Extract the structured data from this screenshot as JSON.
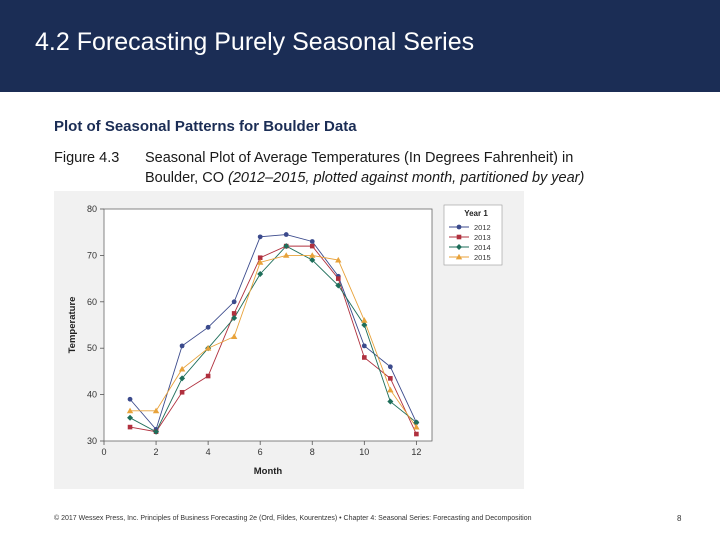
{
  "slide": {
    "title": "4.2 Forecasting Purely Seasonal Series",
    "heading": "Plot of Seasonal Patterns for Boulder Data",
    "caption": {
      "figure_number": "Figure 4.3",
      "line1": "Seasonal Plot of Average Temperatures (In Degrees Fahrenheit) in",
      "line2_normal": "Boulder, CO",
      "line2_italic": " (2012–2015, plotted against month, partitioned by year)"
    },
    "footer": "© 2017 Wessex Press, Inc. Principles of Business Forecasting 2e (Ord, Fildes, Kourentzes) • Chapter 4: Seasonal Series: Forecasting and Decomposition",
    "page_number": "8"
  },
  "chart_data": {
    "type": "line",
    "title": "",
    "xlabel": "Month",
    "ylabel": "Temperature",
    "xlim": [
      0,
      12.6
    ],
    "ylim": [
      30,
      80
    ],
    "x_ticks": [
      0,
      2,
      4,
      6,
      8,
      10,
      12
    ],
    "y_ticks": [
      30,
      40,
      50,
      60,
      70,
      80
    ],
    "grid": false,
    "legend_title": "Year 1",
    "legend_position": "top-right",
    "x": [
      1,
      2,
      3,
      4,
      5,
      6,
      7,
      8,
      9,
      10,
      11,
      12
    ],
    "series": [
      {
        "name": "2012",
        "color": "#3b4a8c",
        "marker": "circle",
        "values": [
          39,
          32.5,
          50.5,
          54.5,
          60,
          74,
          74.5,
          73,
          65.5,
          50.5,
          46,
          34
        ]
      },
      {
        "name": "2013",
        "color": "#b0303e",
        "marker": "square",
        "values": [
          33,
          32,
          40.5,
          44,
          57.5,
          69.5,
          72,
          72,
          65,
          48,
          43.5,
          31.5
        ]
      },
      {
        "name": "2014",
        "color": "#1e6e5a",
        "marker": "diamond",
        "values": [
          35,
          32,
          43.5,
          50,
          56.5,
          66,
          72,
          69,
          63.5,
          55,
          38.5,
          34
        ]
      },
      {
        "name": "2015",
        "color": "#e8a23a",
        "marker": "triangle",
        "values": [
          36.5,
          36.5,
          45.5,
          50,
          52.5,
          68.5,
          70,
          70,
          69,
          56,
          41,
          33
        ]
      }
    ]
  }
}
